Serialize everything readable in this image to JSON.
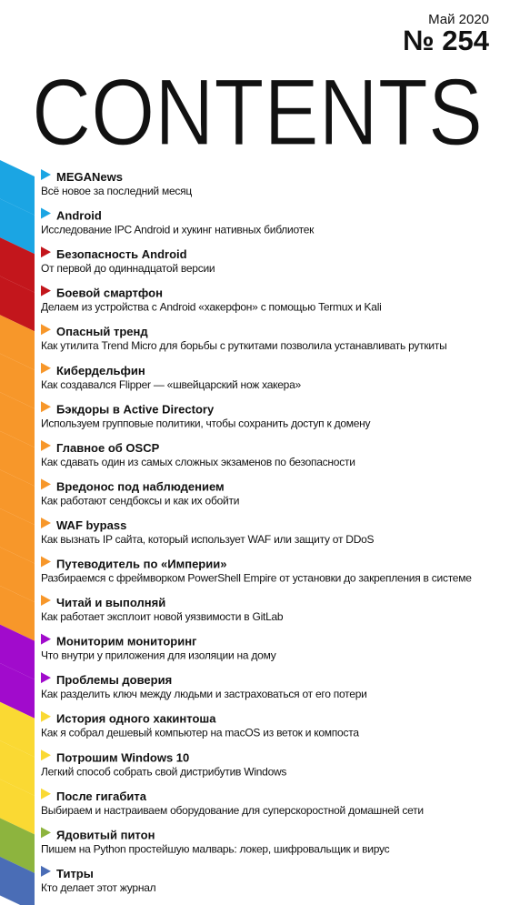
{
  "header": {
    "issue_date": "Май 2020",
    "issue_number": "№ 254",
    "title": "CONTENTS"
  },
  "entries": [
    {
      "title": "MEGANews",
      "subtitle": "Всё новое за последний месяц",
      "color": "#1ba5e3"
    },
    {
      "title": "Android",
      "subtitle": "Исследование IPC Android и хукинг нативных библиотек",
      "color": "#1ba5e3"
    },
    {
      "title": "Безопасность Android",
      "subtitle": "От первой до одиннадцатой версии",
      "color": "#c3161c"
    },
    {
      "title": "Боевой смартфон",
      "subtitle": "Делаем из устройства с Android «хакерфон» с помощью Termux и Kali",
      "color": "#c3161c"
    },
    {
      "title": "Опасный тренд",
      "subtitle": "Как утилита Trend Micro для борьбы с руткитами позволила устанавливать руткиты",
      "color": "#f7972a"
    },
    {
      "title": "Кибердельфин",
      "subtitle": "Как создавался Flipper — «швейцарский нож хакера»",
      "color": "#f7972a"
    },
    {
      "title": "Бэкдоры в Active Directory",
      "subtitle": "Используем групповые политики, чтобы сохранить доступ к домену",
      "color": "#f7972a"
    },
    {
      "title": "Главное об OSCP",
      "subtitle": "Как сдавать один из самых сложных экзаменов по безопасности",
      "color": "#f7972a"
    },
    {
      "title": "Вредонос под наблюдением",
      "subtitle": "Как работают сендбоксы и как их обойти",
      "color": "#f7972a"
    },
    {
      "title": "WAF bypass",
      "subtitle": "Как вызнать IP сайта, который использует WAF или защиту от DDoS",
      "color": "#f7972a"
    },
    {
      "title": "Путеводитель по «Империи»",
      "subtitle": "Разбираемся с фреймворком PowerShell Empire от установки до закрепления в системе",
      "color": "#f7972a"
    },
    {
      "title": "Читай и выполняй",
      "subtitle": "Как работает эксплоит новой уязвимости в GitLab",
      "color": "#f7972a"
    },
    {
      "title": "Мониторим мониторинг",
      "subtitle": "Что внутри у приложения для изоляции на дому",
      "color": "#a10bcc"
    },
    {
      "title": "Проблемы доверия",
      "subtitle": "Как разделить ключ между людьми и застраховаться от его потери",
      "color": "#a10bcc"
    },
    {
      "title": "История одного хакинтоша",
      "subtitle": "Как я собрал дешевый компьютер на macOS из веток и компоста",
      "color": "#fad933"
    },
    {
      "title": "Потрошим Windows 10",
      "subtitle": "Легкий способ собрать свой дистрибутив Windows",
      "color": "#fad933"
    },
    {
      "title": "После гигабита",
      "subtitle": "Выбираем и настраиваем оборудование для суперскоростной домашней сети",
      "color": "#fad933"
    },
    {
      "title": "Ядовитый питон",
      "subtitle": "Пишем на Python простейшую малварь: локер, шифровальщик и вирус",
      "color": "#8db43e"
    },
    {
      "title": "Титры",
      "subtitle": "Кто делает этот журнал",
      "color": "#4a6db6"
    }
  ]
}
